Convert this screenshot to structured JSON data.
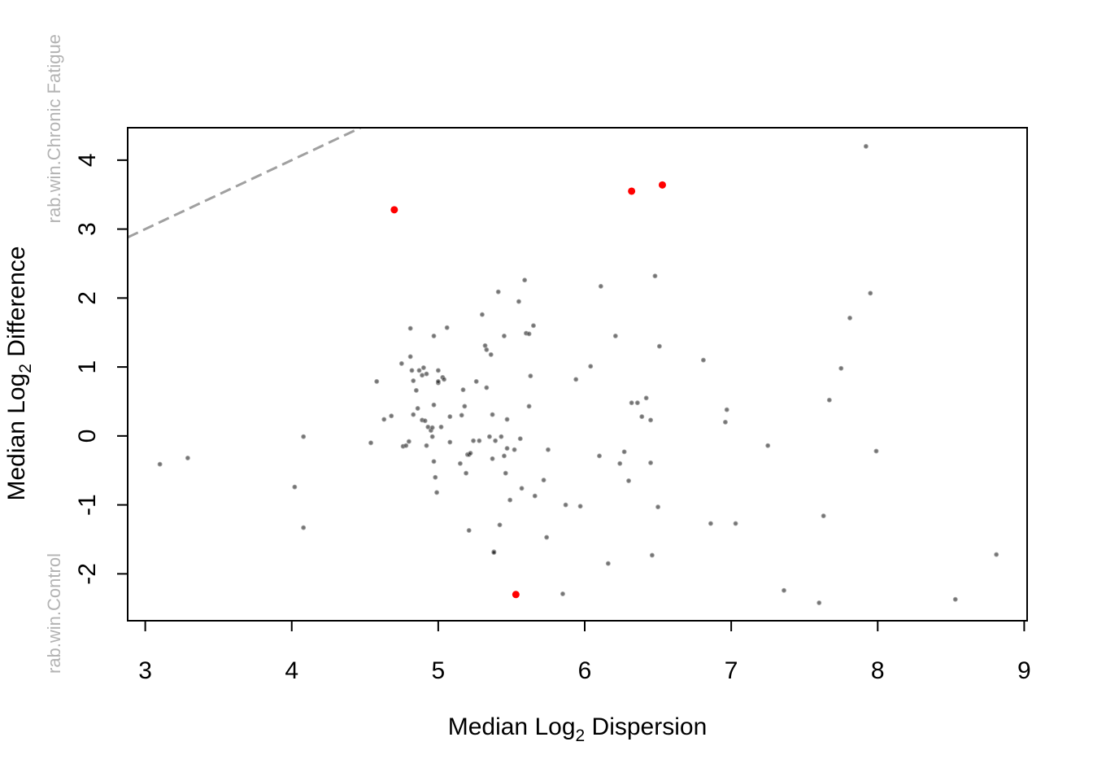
{
  "chart_data": {
    "type": "scatter",
    "xlabel": {
      "prefix": "Median  Log",
      "sub": "2",
      "suffix": "  Dispersion"
    },
    "ylabel": {
      "prefix": "Median  Log",
      "sub": "2",
      "suffix": "  Difference"
    },
    "side_labels": {
      "top": "rab.win.Chronic Fatigue",
      "bottom": "rab.win.Control"
    },
    "xlim": [
      2.88,
      9.02
    ],
    "ylim": [
      -2.68,
      4.47
    ],
    "x_ticks": [
      3,
      4,
      5,
      6,
      7,
      8,
      9
    ],
    "y_ticks": [
      -2,
      -1,
      0,
      1,
      2,
      3,
      4
    ],
    "grid": false,
    "legend": "none",
    "colors": {
      "significant": "#ff0000",
      "nonsignificant": "#999999",
      "reference_line": "#a0a0a0"
    },
    "reference_line": {
      "x": [
        2.88,
        4.47
      ],
      "y": [
        2.88,
        4.47
      ]
    },
    "series": [
      {
        "role": "nonsignificant",
        "points": [
          [
            3.1,
            -0.41
          ],
          [
            3.29,
            -0.32
          ],
          [
            4.02,
            -0.74
          ],
          [
            4.08,
            -0.01
          ],
          [
            4.08,
            -1.33
          ],
          [
            4.54,
            -0.1
          ],
          [
            4.58,
            0.79
          ],
          [
            4.63,
            0.24
          ],
          [
            4.68,
            0.29
          ],
          [
            4.75,
            1.05
          ],
          [
            4.76,
            -0.15
          ],
          [
            4.78,
            -0.14
          ],
          [
            4.8,
            -0.08
          ],
          [
            4.81,
            1.15
          ],
          [
            4.81,
            1.56
          ],
          [
            4.82,
            0.95
          ],
          [
            4.83,
            0.31
          ],
          [
            4.83,
            0.8
          ],
          [
            4.85,
            0.66
          ],
          [
            4.86,
            0.4
          ],
          [
            4.87,
            0.95
          ],
          [
            4.89,
            0.88
          ],
          [
            4.89,
            0.23
          ],
          [
            4.9,
            0.99
          ],
          [
            4.91,
            0.22
          ],
          [
            4.92,
            0.9
          ],
          [
            4.92,
            -0.14
          ],
          [
            4.93,
            0.13
          ],
          [
            4.95,
            0.08
          ],
          [
            4.96,
            -0.01
          ],
          [
            4.96,
            0.12
          ],
          [
            4.97,
            0.45
          ],
          [
            4.97,
            1.45
          ],
          [
            4.97,
            -0.37
          ],
          [
            4.98,
            -0.6
          ],
          [
            4.99,
            -0.82
          ],
          [
            5.0,
            0.77
          ],
          [
            5.0,
            0.95
          ],
          [
            5.0,
            0.79
          ],
          [
            5.02,
            0.13
          ],
          [
            5.03,
            0.85
          ],
          [
            5.04,
            0.82
          ],
          [
            5.06,
            1.57
          ],
          [
            5.08,
            -0.09
          ],
          [
            5.08,
            0.28
          ],
          [
            5.15,
            -0.4
          ],
          [
            5.16,
            0.3
          ],
          [
            5.17,
            0.67
          ],
          [
            5.18,
            0.43
          ],
          [
            5.19,
            -0.54
          ],
          [
            5.2,
            -0.27
          ],
          [
            5.21,
            -1.37
          ],
          [
            5.21,
            -0.27
          ],
          [
            5.22,
            -0.25
          ],
          [
            5.24,
            -0.07
          ],
          [
            5.26,
            0.79
          ],
          [
            5.28,
            -0.07
          ],
          [
            5.3,
            1.76
          ],
          [
            5.32,
            1.31
          ],
          [
            5.33,
            1.25
          ],
          [
            5.33,
            0.7
          ],
          [
            5.35,
            -0.01
          ],
          [
            5.36,
            1.18
          ],
          [
            5.37,
            -0.33
          ],
          [
            5.37,
            0.31
          ],
          [
            5.38,
            -1.68
          ],
          [
            5.38,
            -1.69
          ],
          [
            5.39,
            -0.07
          ],
          [
            5.41,
            2.09
          ],
          [
            5.42,
            -1.29
          ],
          [
            5.43,
            -0.01
          ],
          [
            5.45,
            1.45
          ],
          [
            5.45,
            -0.29
          ],
          [
            5.46,
            -0.54
          ],
          [
            5.47,
            0.24
          ],
          [
            5.47,
            -0.18
          ],
          [
            5.49,
            -0.93
          ],
          [
            5.52,
            -0.2
          ],
          [
            5.55,
            1.95
          ],
          [
            5.56,
            -0.04
          ],
          [
            5.57,
            -0.76
          ],
          [
            5.59,
            2.26
          ],
          [
            5.6,
            1.49
          ],
          [
            5.62,
            0.43
          ],
          [
            5.62,
            1.48
          ],
          [
            5.63,
            0.87
          ],
          [
            5.65,
            1.6
          ],
          [
            5.66,
            -0.87
          ],
          [
            5.72,
            -0.64
          ],
          [
            5.74,
            -1.47
          ],
          [
            5.75,
            -0.2
          ],
          [
            5.85,
            -2.29
          ],
          [
            5.87,
            -1.0
          ],
          [
            5.94,
            0.82
          ],
          [
            5.97,
            -1.02
          ],
          [
            6.04,
            1.01
          ],
          [
            6.1,
            -0.29
          ],
          [
            6.11,
            2.17
          ],
          [
            6.16,
            -1.85
          ],
          [
            6.21,
            1.45
          ],
          [
            6.24,
            -0.4
          ],
          [
            6.27,
            -0.23
          ],
          [
            6.3,
            -0.65
          ],
          [
            6.32,
            0.48
          ],
          [
            6.36,
            0.48
          ],
          [
            6.39,
            0.28
          ],
          [
            6.42,
            0.55
          ],
          [
            6.45,
            0.23
          ],
          [
            6.45,
            -0.39
          ],
          [
            6.46,
            -1.73
          ],
          [
            6.48,
            2.32
          ],
          [
            6.5,
            -1.03
          ],
          [
            6.51,
            1.3
          ],
          [
            6.81,
            1.1
          ],
          [
            6.86,
            -1.27
          ],
          [
            6.96,
            0.2
          ],
          [
            6.97,
            0.38
          ],
          [
            7.03,
            -1.27
          ],
          [
            7.25,
            -0.14
          ],
          [
            7.36,
            -2.24
          ],
          [
            7.6,
            -2.42
          ],
          [
            7.63,
            -1.16
          ],
          [
            7.67,
            0.52
          ],
          [
            7.75,
            0.98
          ],
          [
            7.81,
            1.71
          ],
          [
            7.92,
            4.2
          ],
          [
            7.95,
            2.07
          ],
          [
            7.99,
            -0.22
          ],
          [
            8.53,
            -2.37
          ],
          [
            8.81,
            -1.72
          ]
        ]
      },
      {
        "role": "significant",
        "points": [
          [
            4.7,
            3.28
          ],
          [
            6.32,
            3.55
          ],
          [
            6.53,
            3.64
          ],
          [
            5.53,
            -2.3
          ]
        ]
      }
    ]
  }
}
